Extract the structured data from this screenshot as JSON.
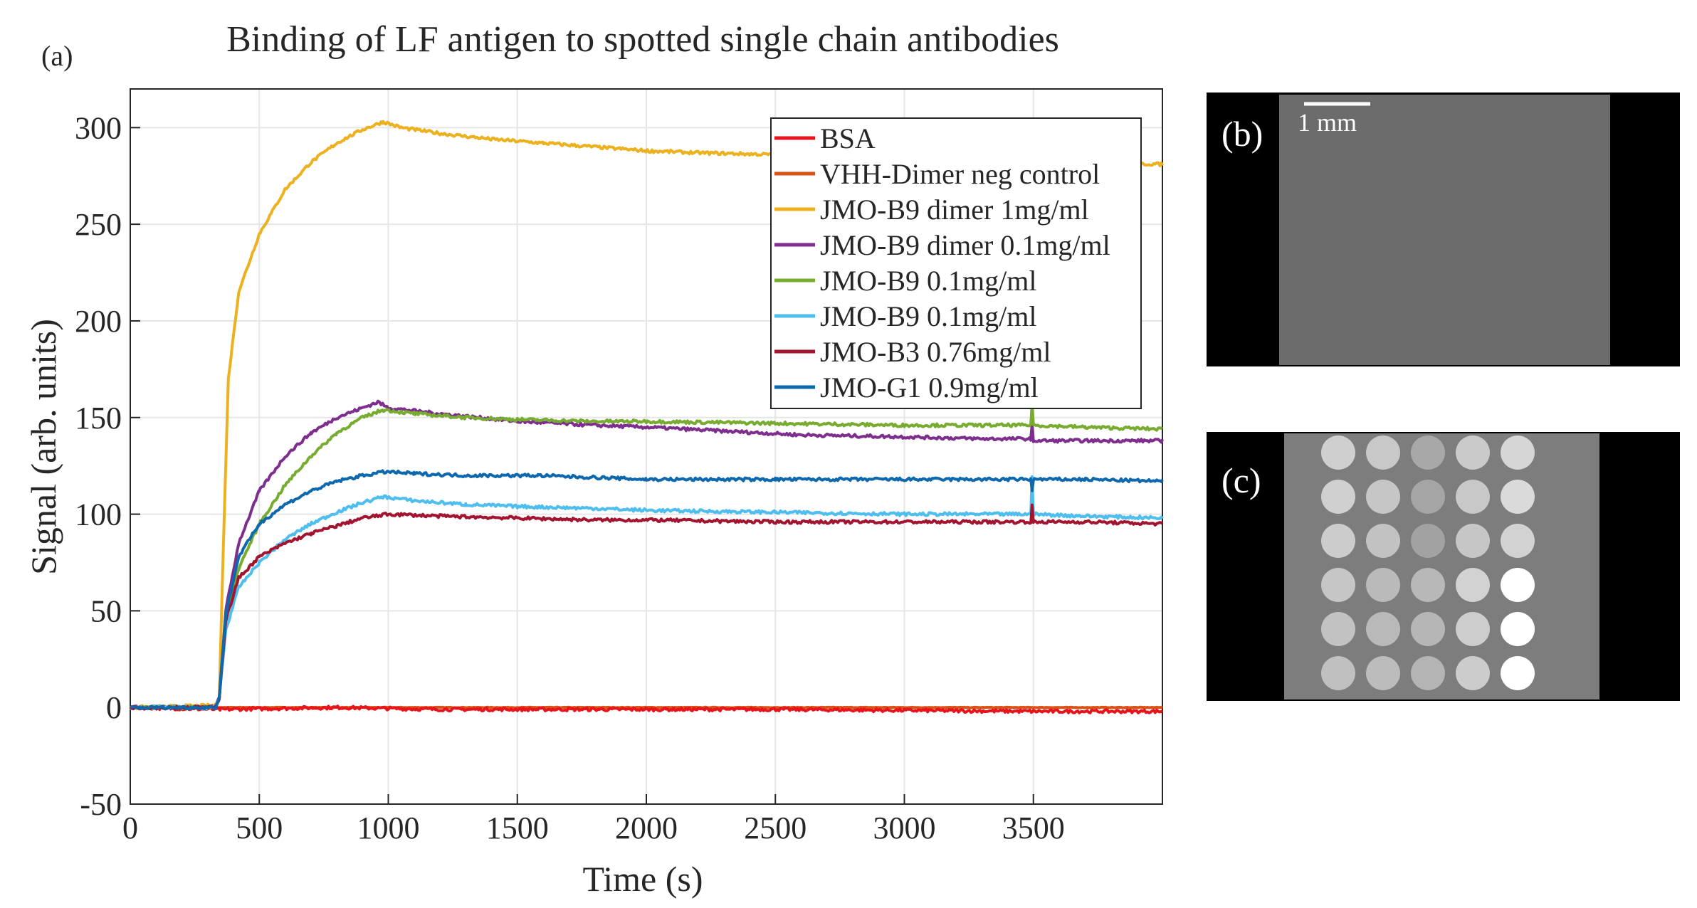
{
  "panel_a_label": "(a)",
  "panel_b_label": "(b)",
  "panel_c_label": "(c)",
  "scale_bar_label": "1 mm",
  "colors": {
    "BSA": "#e8141b",
    "VHH": "#d95319",
    "B9d1": "#edb120",
    "B9d01": "#7e2f8e",
    "B9g": "#77ac30",
    "B9c": "#4dbeee",
    "B3": "#a2142f",
    "G1": "#0e68ad",
    "grid": "#e6e6e6",
    "axis": "#262626"
  },
  "chart_data": {
    "type": "line",
    "title": "Binding of LF antigen to spotted single chain antibodies",
    "xlabel": "Time (s)",
    "ylabel": "Signal (arb. units)",
    "xlim": [
      0,
      4000
    ],
    "ylim": [
      -50,
      320
    ],
    "xticks": [
      0,
      500,
      1000,
      1500,
      2000,
      2500,
      3000,
      3500
    ],
    "yticks": [
      -50,
      0,
      50,
      100,
      150,
      200,
      250,
      300
    ],
    "grid": true,
    "legend_position": "top-right",
    "series": [
      {
        "name": "BSA",
        "color_key": "BSA",
        "points": [
          [
            0,
            0
          ],
          [
            350,
            -1
          ],
          [
            800,
            0
          ],
          [
            1200,
            -1
          ],
          [
            1580,
            -1
          ],
          [
            2000,
            -1
          ],
          [
            2500,
            -1
          ],
          [
            3000,
            -1.5
          ],
          [
            3500,
            -2
          ],
          [
            4000,
            -2
          ]
        ]
      },
      {
        "name": "VHH-Dimer neg control",
        "color_key": "VHH",
        "points": [
          [
            0,
            0
          ],
          [
            350,
            0
          ],
          [
            800,
            0
          ],
          [
            1200,
            0
          ],
          [
            1600,
            0
          ],
          [
            2000,
            0
          ],
          [
            2500,
            0
          ],
          [
            3000,
            0
          ],
          [
            3500,
            0
          ],
          [
            4000,
            0
          ]
        ]
      },
      {
        "name": "JMO-B9 dimer 1mg/ml",
        "color_key": "B9d1",
        "points": [
          [
            0,
            0
          ],
          [
            330,
            1
          ],
          [
            345,
            5
          ],
          [
            360,
            80
          ],
          [
            380,
            170
          ],
          [
            420,
            215
          ],
          [
            500,
            245
          ],
          [
            600,
            268
          ],
          [
            700,
            282
          ],
          [
            800,
            292
          ],
          [
            900,
            299
          ],
          [
            980,
            303
          ],
          [
            1050,
            300
          ],
          [
            1200,
            297
          ],
          [
            1400,
            294
          ],
          [
            1600,
            292
          ],
          [
            1800,
            290
          ],
          [
            2000,
            288
          ],
          [
            2200,
            287
          ],
          [
            2500,
            286
          ],
          [
            2800,
            285
          ],
          [
            3000,
            284
          ],
          [
            3300,
            283
          ],
          [
            3500,
            282
          ],
          [
            3700,
            282
          ],
          [
            4000,
            281
          ]
        ]
      },
      {
        "name": "JMO-B9 dimer 0.1mg/ml",
        "color_key": "B9d01",
        "points": [
          [
            0,
            0
          ],
          [
            330,
            0
          ],
          [
            345,
            5
          ],
          [
            370,
            50
          ],
          [
            420,
            85
          ],
          [
            500,
            112
          ],
          [
            600,
            130
          ],
          [
            700,
            142
          ],
          [
            800,
            150
          ],
          [
            900,
            155
          ],
          [
            960,
            158
          ],
          [
            1000,
            155
          ],
          [
            1200,
            152
          ],
          [
            1500,
            148
          ],
          [
            1800,
            146
          ],
          [
            2000,
            145
          ],
          [
            2300,
            143
          ],
          [
            2600,
            141
          ],
          [
            3000,
            140
          ],
          [
            3300,
            139
          ],
          [
            3490,
            139
          ],
          [
            3495,
            146
          ],
          [
            3500,
            138
          ],
          [
            3700,
            138
          ],
          [
            4000,
            138
          ]
        ]
      },
      {
        "name": "JMO-B9 0.1mg/ml",
        "color_key": "B9g",
        "points": [
          [
            0,
            0
          ],
          [
            330,
            0
          ],
          [
            345,
            5
          ],
          [
            370,
            45
          ],
          [
            420,
            72
          ],
          [
            500,
            95
          ],
          [
            600,
            115
          ],
          [
            700,
            130
          ],
          [
            800,
            142
          ],
          [
            900,
            150
          ],
          [
            980,
            154
          ],
          [
            1100,
            152
          ],
          [
            1300,
            150
          ],
          [
            1500,
            149
          ],
          [
            1800,
            148
          ],
          [
            2000,
            148
          ],
          [
            2500,
            147
          ],
          [
            3000,
            146
          ],
          [
            3490,
            146
          ],
          [
            3495,
            158
          ],
          [
            3500,
            146
          ],
          [
            3700,
            145
          ],
          [
            4000,
            144
          ]
        ]
      },
      {
        "name": "JMO-B9 0.1mg/ml",
        "color_key": "B9c",
        "points": [
          [
            0,
            0
          ],
          [
            330,
            0
          ],
          [
            345,
            5
          ],
          [
            370,
            40
          ],
          [
            420,
            62
          ],
          [
            500,
            75
          ],
          [
            600,
            87
          ],
          [
            700,
            95
          ],
          [
            800,
            101
          ],
          [
            900,
            106
          ],
          [
            980,
            109
          ],
          [
            1100,
            107
          ],
          [
            1300,
            105
          ],
          [
            1500,
            104
          ],
          [
            1800,
            103
          ],
          [
            2000,
            102
          ],
          [
            2500,
            101
          ],
          [
            3000,
            100
          ],
          [
            3490,
            100
          ],
          [
            3495,
            120
          ],
          [
            3500,
            100
          ],
          [
            3700,
            99
          ],
          [
            4000,
            98
          ]
        ]
      },
      {
        "name": "JMO-B3 0.76mg/ml",
        "color_key": "B3",
        "points": [
          [
            0,
            0
          ],
          [
            330,
            0
          ],
          [
            345,
            5
          ],
          [
            370,
            45
          ],
          [
            420,
            67
          ],
          [
            500,
            78
          ],
          [
            600,
            85
          ],
          [
            700,
            90
          ],
          [
            800,
            94
          ],
          [
            900,
            98
          ],
          [
            1000,
            100
          ],
          [
            1200,
            99
          ],
          [
            1500,
            98
          ],
          [
            1800,
            97
          ],
          [
            2000,
            97
          ],
          [
            2500,
            96
          ],
          [
            3000,
            96
          ],
          [
            3490,
            96
          ],
          [
            3495,
            104
          ],
          [
            3500,
            96
          ],
          [
            3700,
            96
          ],
          [
            4000,
            95
          ]
        ]
      },
      {
        "name": "JMO-G1 0.9mg/ml",
        "color_key": "G1",
        "points": [
          [
            0,
            0
          ],
          [
            330,
            0
          ],
          [
            345,
            5
          ],
          [
            370,
            48
          ],
          [
            420,
            78
          ],
          [
            500,
            95
          ],
          [
            600,
            105
          ],
          [
            700,
            112
          ],
          [
            800,
            117
          ],
          [
            900,
            120
          ],
          [
            990,
            122
          ],
          [
            1100,
            121
          ],
          [
            1300,
            120
          ],
          [
            1580,
            120
          ],
          [
            1800,
            119
          ],
          [
            2000,
            118
          ],
          [
            2500,
            118
          ],
          [
            3000,
            118
          ],
          [
            3490,
            118
          ],
          [
            3495,
            112
          ],
          [
            3500,
            118
          ],
          [
            3700,
            118
          ],
          [
            4000,
            117
          ]
        ]
      }
    ]
  }
}
